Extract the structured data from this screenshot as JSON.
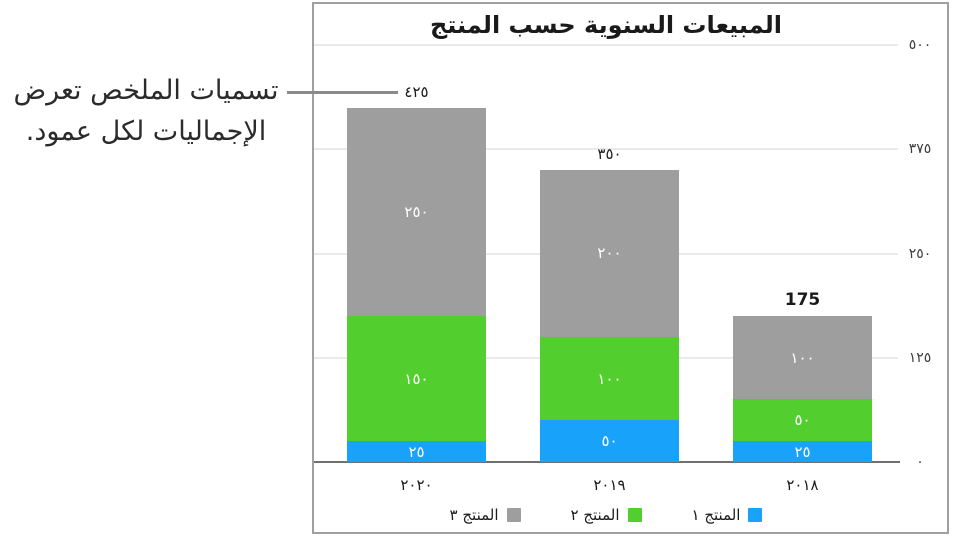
{
  "annotation": {
    "line1": "تسميات الملخص تعرض",
    "line2": "الإجماليات لكل عمود."
  },
  "chart_data": {
    "type": "bar",
    "stacked": true,
    "direction": "rtl",
    "title": "المبيعات السنوية حسب المنتج",
    "categories": [
      "٢٠٢٠",
      "٢٠١٩",
      "٢٠١٨"
    ],
    "categories_western": [
      2020,
      2019,
      2018
    ],
    "series": [
      {
        "name": "المنتج ١",
        "color": "#18A2FA",
        "values": [
          25,
          50,
          25
        ],
        "value_labels": [
          "٢٥",
          "٥٠",
          "٢٥"
        ]
      },
      {
        "name": "المنتج ٢",
        "color": "#53CE2F",
        "values": [
          150,
          100,
          50
        ],
        "value_labels": [
          "١٥٠",
          "١٠٠",
          "٥٠"
        ]
      },
      {
        "name": "المنتج ٣",
        "color": "#9E9E9E",
        "values": [
          250,
          200,
          100
        ],
        "value_labels": [
          "٢٥٠",
          "٢٠٠",
          "١٠٠"
        ]
      }
    ],
    "totals": [
      425,
      350,
      175
    ],
    "total_labels": [
      "٤٢٥",
      "٣٥٠",
      "175"
    ],
    "y_ticks": [
      0,
      125,
      250,
      375,
      500
    ],
    "y_tick_labels": [
      "٠",
      "١٢٥",
      "٢٥٠",
      "٣٧٥",
      "٥٠٠"
    ],
    "ylim": [
      0,
      500
    ],
    "grid": true,
    "legend_position": "bottom",
    "colors": {
      "grid": "#EAEAEA",
      "axis": "#707070",
      "panel_border": "#A0A0A0",
      "callout_line": "#8B8B8B"
    }
  }
}
